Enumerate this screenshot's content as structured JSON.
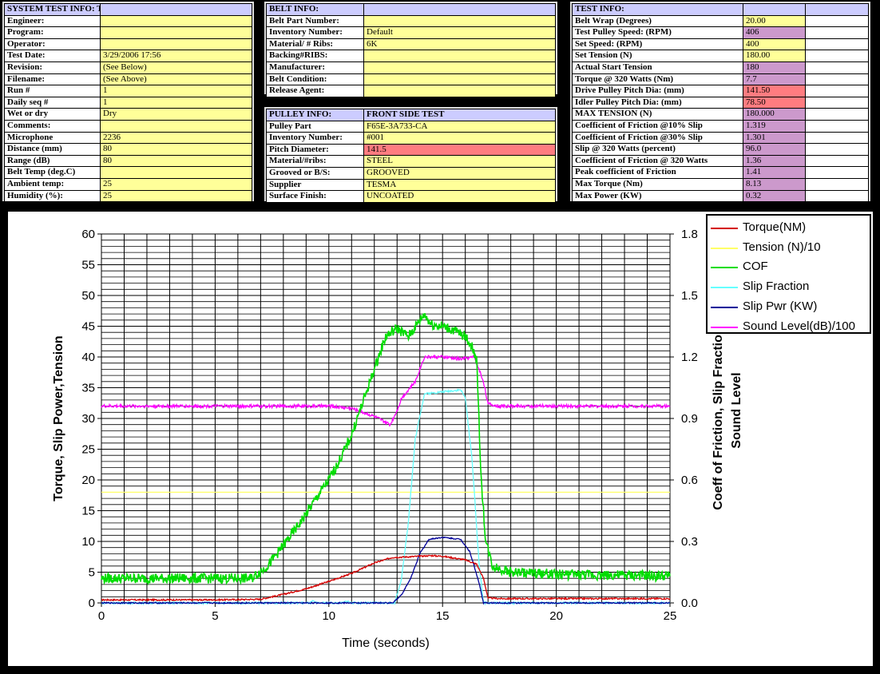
{
  "panels": {
    "system": {
      "rows": [
        {
          "label": "SYSTEM TEST INFO:   TORQUE RAMP",
          "value": "",
          "head": true
        },
        {
          "label": "Engineer:",
          "value": ""
        },
        {
          "label": "Program:",
          "value": ""
        },
        {
          "label": "Operator:",
          "value": ""
        },
        {
          "label": "Test Date:",
          "value": "3/29/2006 17:56"
        },
        {
          "label": "Revision:",
          "value": "(See Below)"
        },
        {
          "label": "Filename:",
          "value": "(See Above)"
        },
        {
          "label": "Run #",
          "value": "1"
        },
        {
          "label": "Daily seq #",
          "value": "1"
        },
        {
          "label": "Wet or dry",
          "value": "Dry"
        },
        {
          "label": "Comments:",
          "value": ""
        },
        {
          "label": "Microphone",
          "value": "2236"
        },
        {
          "label": "Distance (mm)",
          "value": "80"
        },
        {
          "label": "Range (dB)",
          "value": "80"
        },
        {
          "label": "Belt Temp (deg.C)",
          "value": ""
        },
        {
          "label": "Ambient temp:",
          "value": "25"
        },
        {
          "label": " Humidity (%):",
          "value": "25"
        }
      ]
    },
    "belt": {
      "rows": [
        {
          "label": "BELT INFO:",
          "value": "",
          "head": true
        },
        {
          "label": "Belt Part Number:",
          "value": ""
        },
        {
          "label": "Inventory Number:",
          "value": "Default"
        },
        {
          "label": "Material/ # Ribs:",
          "value": "6K"
        },
        {
          "label": "Backing#RIBS:",
          "value": ""
        },
        {
          "label": "Manufacturer:",
          "value": ""
        },
        {
          "label": "Belt Condition:",
          "value": ""
        },
        {
          "label": "Release Agent:",
          "value": ""
        }
      ]
    },
    "pulley": {
      "rows": [
        {
          "label": "PULLEY INFO:",
          "value": "FRONT SIDE TEST",
          "head": true
        },
        {
          "label": "Pulley Part",
          "value": "F65E-3A733-CA"
        },
        {
          "label": "Inventory Number:",
          "value": "#001"
        },
        {
          "label": "Pitch Diameter:",
          "value": "141.5",
          "color": "pink"
        },
        {
          "label": "Material/#ribs:",
          "value": "STEEL"
        },
        {
          "label": "Grooved or B/S:",
          "value": "GROOVED"
        },
        {
          "label": "Supplier",
          "value": "TESMA"
        },
        {
          "label": "Surface Finish:",
          "value": "UNCOATED"
        }
      ]
    },
    "test": {
      "rows": [
        {
          "label": "TEST INFO:",
          "value": "",
          "head": true
        },
        {
          "label": "Belt Wrap (Degrees)",
          "value": "20.00"
        },
        {
          "label": "Test Pulley Speed: (RPM)",
          "value": "406",
          "color": "violet"
        },
        {
          "label": "Set Speed: (RPM)",
          "value": "400"
        },
        {
          "label": "Set Tension (N)",
          "value": "180.00"
        },
        {
          "label": "Actual Start Tension",
          "value": "180",
          "color": "violet"
        },
        {
          "label": "Torque @ 320 Watts (Nm)",
          "value": "7.7",
          "color": "violet"
        },
        {
          "label": "Drive Pulley Pitch Dia: (mm)",
          "value": "141.50",
          "color": "pink"
        },
        {
          "label": "Idler Pulley Pitch Dia: (mm)",
          "value": "78.50",
          "color": "pink"
        },
        {
          "label": "MAX TENSION (N)",
          "value": "180.000",
          "color": "violet"
        },
        {
          "label": "Coefficient of Friction @10% Slip",
          "value": "1.319",
          "color": "violet"
        },
        {
          "label": "Coefficient of Friction @30% Slip",
          "value": "1.301",
          "color": "violet"
        },
        {
          "label": "Slip @ 320 Watts (percent)",
          "value": "96.0",
          "color": "violet"
        },
        {
          "label": "Coefficient of Friction @ 320 Watts",
          "value": "1.36",
          "color": "violet"
        },
        {
          "label": "Peak coefficient of Friction",
          "value": "1.41",
          "color": "violet"
        },
        {
          "label": "Max Torque (Nm)",
          "value": "8.13",
          "color": "violet"
        },
        {
          "label": "Max Power (KW)",
          "value": "0.32",
          "color": "violet"
        }
      ]
    }
  },
  "chart_data": {
    "type": "line",
    "title": "",
    "xlabel": "Time (seconds)",
    "ylabel": "Torque, Slip Power,Tension",
    "y2label": "Coeff of Friction, Slip Fraction\nSound Level",
    "xlim": [
      0,
      25
    ],
    "ylim": [
      0,
      60
    ],
    "y2lim": [
      0,
      1.8
    ],
    "xticks": [
      "0",
      "5",
      "10",
      "15",
      "20",
      "25"
    ],
    "yticks": [
      "0",
      "5",
      "10",
      "15",
      "20",
      "25",
      "30",
      "35",
      "40",
      "45",
      "50",
      "55",
      "60"
    ],
    "y2ticks": [
      "0.0",
      "0.3",
      "0.6",
      "0.9",
      "1.2",
      "1.5",
      "1.8"
    ],
    "grid": true,
    "legend_position": "top-right",
    "series": [
      {
        "name": "Torque(NM)",
        "color": "#d40000",
        "axis": "left",
        "points": [
          [
            0,
            0.5
          ],
          [
            5,
            0.5
          ],
          [
            7,
            0.6
          ],
          [
            8,
            1.4
          ],
          [
            9,
            2.3
          ],
          [
            10,
            3.5
          ],
          [
            11,
            4.8
          ],
          [
            12,
            6.5
          ],
          [
            12.8,
            7.4
          ],
          [
            13.5,
            7.5
          ],
          [
            14,
            7.6
          ],
          [
            14.5,
            7.7
          ],
          [
            15,
            7.6
          ],
          [
            15.5,
            7.3
          ],
          [
            16,
            7.0
          ],
          [
            16.5,
            6.3
          ],
          [
            16.8,
            4.0
          ],
          [
            17,
            0.8
          ],
          [
            17.5,
            0.7
          ],
          [
            20,
            0.7
          ],
          [
            25,
            0.7
          ]
        ]
      },
      {
        "name": "Tension (N)/10",
        "color": "#ffff66",
        "axis": "left",
        "points": [
          [
            0,
            18
          ],
          [
            25,
            18
          ]
        ]
      },
      {
        "name": "COF",
        "color": "#00dd00",
        "axis": "right",
        "points": [
          [
            0,
            0.12
          ],
          [
            6.6,
            0.12
          ],
          [
            7.3,
            0.18
          ],
          [
            8,
            0.28
          ],
          [
            8.8,
            0.4
          ],
          [
            9.5,
            0.52
          ],
          [
            10,
            0.6
          ],
          [
            10.5,
            0.7
          ],
          [
            11,
            0.82
          ],
          [
            11.5,
            0.98
          ],
          [
            12,
            1.14
          ],
          [
            12.5,
            1.3
          ],
          [
            13,
            1.34
          ],
          [
            13.5,
            1.3
          ],
          [
            14.2,
            1.41
          ],
          [
            14.5,
            1.36
          ],
          [
            15,
            1.35
          ],
          [
            15.5,
            1.33
          ],
          [
            16,
            1.3
          ],
          [
            16.3,
            1.25
          ],
          [
            16.5,
            1.18
          ],
          [
            16.7,
            0.6
          ],
          [
            16.9,
            0.3
          ],
          [
            17.2,
            0.18
          ],
          [
            18,
            0.15
          ],
          [
            20,
            0.14
          ],
          [
            25,
            0.13
          ]
        ]
      },
      {
        "name": "Slip Fraction",
        "color": "#66ffff",
        "axis": "right",
        "points": [
          [
            0,
            0
          ],
          [
            9.2,
            0
          ],
          [
            9.3,
            0.01
          ],
          [
            9.4,
            0
          ],
          [
            10.6,
            0
          ],
          [
            10.8,
            0.01
          ],
          [
            11,
            0
          ],
          [
            12.9,
            0
          ],
          [
            13.2,
            0.12
          ],
          [
            13.5,
            0.4
          ],
          [
            13.8,
            0.8
          ],
          [
            14.2,
            1.02
          ],
          [
            15.8,
            1.04
          ],
          [
            16,
            1.0
          ],
          [
            16.3,
            0.7
          ],
          [
            16.6,
            0.2
          ],
          [
            16.8,
            0
          ],
          [
            25,
            0
          ]
        ]
      },
      {
        "name": "Slip Pwr (KW)",
        "color": "#000099",
        "axis": "right",
        "points": [
          [
            0,
            0
          ],
          [
            12.8,
            0
          ],
          [
            13.2,
            0.04
          ],
          [
            13.6,
            0.12
          ],
          [
            14,
            0.24
          ],
          [
            14.4,
            0.31
          ],
          [
            15,
            0.32
          ],
          [
            15.8,
            0.31
          ],
          [
            16.2,
            0.25
          ],
          [
            16.6,
            0.1
          ],
          [
            16.8,
            0
          ],
          [
            25,
            0
          ]
        ]
      },
      {
        "name": "Sound Level(dB)/100",
        "color": "#ff00ff",
        "axis": "right",
        "points": [
          [
            0,
            0.96
          ],
          [
            10,
            0.96
          ],
          [
            11,
            0.95
          ],
          [
            12,
            0.91
          ],
          [
            12.7,
            0.87
          ],
          [
            13,
            0.94
          ],
          [
            13.2,
            1.0
          ],
          [
            13.8,
            1.08
          ],
          [
            14.2,
            1.2
          ],
          [
            15,
            1.2
          ],
          [
            15.8,
            1.19
          ],
          [
            16.4,
            1.2
          ],
          [
            16.8,
            1.08
          ],
          [
            17,
            0.97
          ],
          [
            17.5,
            0.96
          ],
          [
            25,
            0.96
          ]
        ]
      }
    ]
  }
}
